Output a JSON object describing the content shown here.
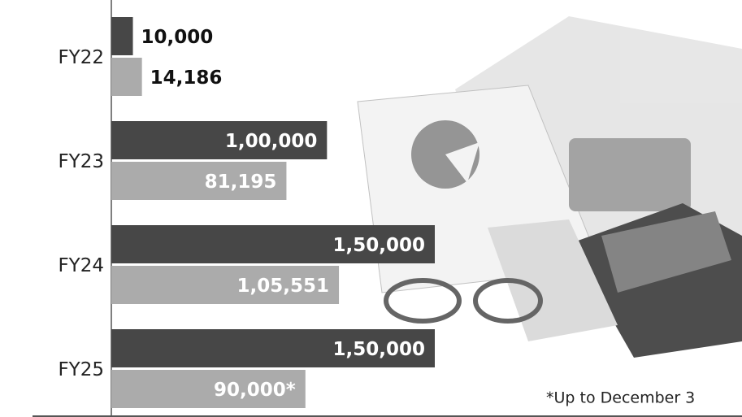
{
  "chart_data": {
    "type": "hbar",
    "categories": [
      "FY22",
      "FY23",
      "FY24",
      "FY25"
    ],
    "series": [
      {
        "color": "#474747",
        "values": [
          10000,
          100000,
          150000,
          150000
        ],
        "value_labels": [
          "10,000",
          "1,00,000",
          "1,50,000",
          "1,50,000"
        ]
      },
      {
        "color": "#ababab",
        "values": [
          14186,
          81195,
          105551,
          90000
        ],
        "value_labels": [
          "14,186",
          "81,195",
          "1,05,551",
          "90,000*"
        ]
      }
    ],
    "footnote": "*Up to December 3"
  }
}
